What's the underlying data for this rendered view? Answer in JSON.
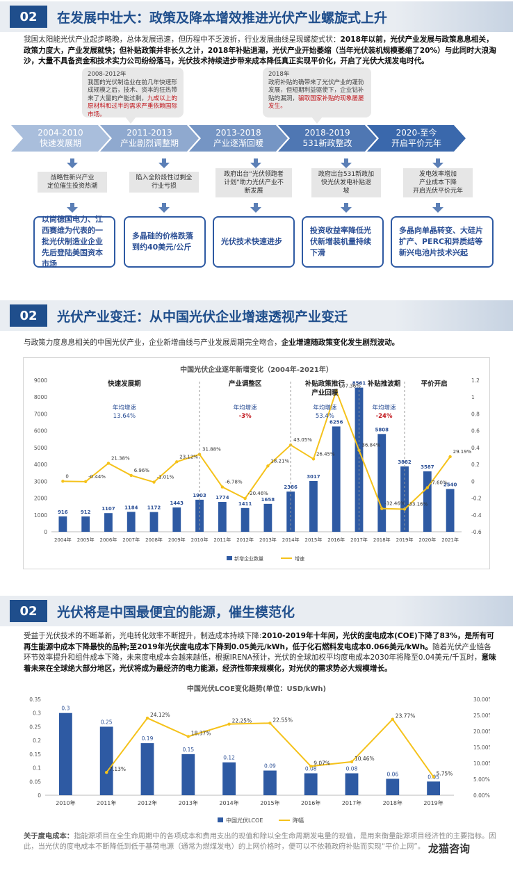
{
  "section1": {
    "badge": "02",
    "title": "在发展中壮大：政策及降本增效推进光伏产业螺旋式上升",
    "intro_normal_1": "我国太阳能光伏产业起步略晚，总体发展迅速，但历程中不乏波折，行业发展曲线呈现螺旋式状：",
    "intro_bold_1": "2018年以前，光伏产业发展与政策息息相关，政策力度大，产业发展就快；但补贴政策并非长久之计，2018年补贴退潮，光伏产业开始萎缩（当年光伏装机规模萎缩了20%）与此同时大浪淘沙，大量不具备资金和技术实力公司纷纷落马，光伏技术持续进步带来成本降低真正实现平价化，开启了光伏大规发电时代。",
    "callout_left_year": "2008-2012年",
    "callout_left_text": "我国的光伏制造业在前几年快速形成规模之后，技术、资本的狂热带来了大量的产能过剩，",
    "callout_left_red": "九成以上的原材料和过半的需求严重依赖国际市场。",
    "callout_right_year": "2018年",
    "callout_right_text": "政府补贴的确带来了光伏产业的蓬勃发展，但短期利益驱使下，企业钻补贴的漏洞，",
    "callout_right_red": "骗取国家补贴的现象屡屡发生。",
    "stages": [
      {
        "years": "2004-2010",
        "name": "快速发展期",
        "label": "战略性新兴产业\n定位催生投资热潮",
        "result": "以尚德国电力、江西赛维为代表的一批光伏制造业企业先后登陆美国资本市场"
      },
      {
        "years": "2011-2013",
        "name": "产业剧烈调整期",
        "label": "陷入全阶段性过剩全\n行业亏损",
        "result": "多晶硅的价格跌落到约40美元/公斤"
      },
      {
        "years": "2013-2018",
        "name": "产业逐渐回暖",
        "label": "政府出台“光伏领跑者\n计划”助力光伏产业不\n断发展",
        "result": "光伏技术快速进步"
      },
      {
        "years": "2018-2019",
        "name": "531新政整改",
        "label": "政府出台531新政加\n快光伏发电补贴退\n坡",
        "result": "投资收益率降低光伏新增装机量持续下滑"
      },
      {
        "years": "2020-至今",
        "name": "开启平价元年",
        "label": "发电效率增加\n产业成本下降\n开启光伏平价元年",
        "result": "多晶向单晶转变、大硅片扩产、PERC和异质结等新兴电池片技术兴起"
      }
    ]
  },
  "section2": {
    "badge": "02",
    "title": "光伏产业变迁：从中国光伏企业增速透视产业变迁",
    "intro_normal": "与政策力度息息相关的中国光伏产业，企业新增曲线与产业发展周期完全吻合，",
    "intro_bold": "企业增速随政策变化发生剧烈波动。",
    "chart_data": {
      "type": "bar",
      "title": "中国光伏企业逐年新增变化（2004年-2021年）",
      "categories": [
        "2004年",
        "2005年",
        "2006年",
        "2007年",
        "2008年",
        "2009年",
        "2010年",
        "2011年",
        "2012年",
        "2013年",
        "2014年",
        "2015年",
        "2016年",
        "2017年",
        "2018年",
        "2019年",
        "2020年",
        "2021年"
      ],
      "series": [
        {
          "name": "新增企业数量",
          "values": [
            916,
            912,
            1107,
            1184,
            1172,
            1443,
            1903,
            1774,
            1411,
            1658,
            2386,
            3017,
            6256,
            8561,
            5808,
            3882,
            3587,
            2540
          ],
          "color": "#2e5aa3"
        },
        {
          "name": "增速",
          "values": [
            0,
            -0.44,
            21.38,
            6.96,
            -1.01,
            23.12,
            31.88,
            -6.78,
            -20.46,
            18.21,
            43.05,
            26.45,
            107.36,
            36.84,
            -32.46,
            -33.16,
            -7.6,
            29.19
          ],
          "labels": [
            "0",
            "-0.44%",
            "21.38%",
            "6.96%",
            "-1.01%",
            "23.12%",
            "31.88%",
            "-6.78%",
            "-20.46%",
            "18.21%",
            "43.05%",
            "26.45%",
            "107.36%",
            "36.84%",
            "-32.46%",
            "-33.16%",
            "-7.60%",
            "29.19%"
          ],
          "color": "#f5c21b"
        }
      ],
      "y_left_ticks": [
        "0",
        "1000",
        "2000",
        "3000",
        "4000",
        "5000",
        "6000",
        "7000",
        "8000",
        "9000"
      ],
      "y_right_ticks": [
        "-0.6",
        "-0.4",
        "-0.2",
        "0",
        "0.2",
        "0.4",
        "0.6",
        "0.8",
        "1",
        "1.2"
      ],
      "ylim": [
        0,
        9000
      ],
      "y2lim": [
        -0.6,
        1.2
      ],
      "legend_position": "bottom",
      "periods": [
        {
          "name": "快速发展期",
          "growth_label": "年均增速",
          "growth": "13.64%",
          "red": false
        },
        {
          "name": "产业调整区",
          "growth_label": "年均增速",
          "growth": "-3%",
          "red": true
        },
        {
          "name": "补贴政策推行\n产业回暖",
          "growth_label": "年均增速",
          "growth": "53.4%",
          "red": false
        },
        {
          "name": "补贴推波期",
          "growth_label": "年均增速",
          "growth": "-24%",
          "red": true
        },
        {
          "name": "平价开启",
          "growth_label": "",
          "growth": "",
          "red": false
        }
      ]
    }
  },
  "section3": {
    "badge": "02",
    "title": "光伏将是中国最便宜的能源，催生模范化",
    "intro_normal_1": "受益于光伏技术的不断革新，光电转化效率不断提升，制造成本持续下降:",
    "intro_bold_1": "2010-2019年十年间，光伏的度电成本(COE)下降了83%，是所有可再生能源中成本下降最快的品种;至2019年光伏度电成本下降到0.05美元/kWh，低于化石燃料发电成本0.066美元/kWh。",
    "intro_normal_2": "随着光伏产业链各环节效率提升和组件成本下降，未来度电成本会越来越低，根据IRENA预计，光伏的全球加权平均度电成本2030年将降至0.04美元/千瓦时，",
    "intro_bold_2": "意味着未来在全球绝大部分地区，光伏将成为最经济的电力能源，经济性带来规模化，对光伏的需求势必大规模增长。",
    "chart_data": {
      "type": "bar",
      "title": "中国光伏LCOE变化趋势(单位：USD/kWh)",
      "categories": [
        "2010年",
        "2011年",
        "2012年",
        "2013年",
        "2014年",
        "2015年",
        "2016年",
        "2017年",
        "2018年",
        "2019年"
      ],
      "series": [
        {
          "name": "中国光伏LCOE",
          "values": [
            0.3,
            0.25,
            0.19,
            0.15,
            0.12,
            0.09,
            0.08,
            0.08,
            0.06,
            0.05
          ],
          "labels": [
            "0.3",
            "0.25",
            "0.19",
            "0.15",
            "0.12",
            "0.09",
            "0.08",
            "0.08",
            "0.06",
            "0.05"
          ],
          "color": "#2e5aa3"
        },
        {
          "name": "降幅",
          "values": [
            null,
            7.13,
            24.12,
            18.37,
            22.25,
            22.55,
            9.07,
            10.46,
            23.77,
            5.75
          ],
          "labels": [
            "",
            "7.13%",
            "24.12%",
            "18.37%",
            "22.25%",
            "22.55%",
            "9.07%",
            "10.46%",
            "23.77%",
            "5.75%"
          ],
          "color": "#f5c21b"
        }
      ],
      "y_left_ticks": [
        "0",
        "0.05",
        "0.1",
        "0.15",
        "0.2",
        "0.25",
        "0.3",
        "0.35"
      ],
      "y_right_ticks": [
        "0.00%",
        "5.00%",
        "10.00%",
        "15.00%",
        "20.00%",
        "25.00%",
        "30.00%"
      ],
      "ylim": [
        0,
        0.35
      ],
      "y2lim": [
        0,
        30
      ],
      "legend_position": "bottom"
    }
  },
  "footnote": {
    "bold": "关于度电成本：",
    "text": "指能源项目在全生命周期中的各项成本和费用支出的现值和除以全生命周期发电量的现值，是用来衡量能源项目经济性的主要指标。因此，当光伏的度电成本不断降低到低于基荷电源（通常为燃煤发电）的上网价格时，便可以不依赖政府补贴而实现“平价上网”。"
  },
  "watermark": "龙猫咨询"
}
